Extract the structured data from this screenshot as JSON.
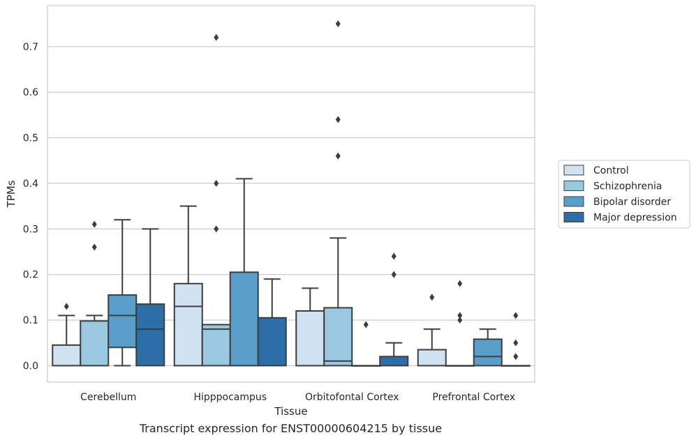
{
  "caption": "Transcript expression for ENST00000604215 by tissue",
  "chart_data": {
    "type": "box",
    "xlabel": "Tissue",
    "ylabel": "TPMs",
    "ylim": [
      -0.036,
      0.79
    ],
    "yticks": [
      0.0,
      0.1,
      0.2,
      0.3,
      0.4,
      0.5,
      0.6,
      0.7
    ],
    "ytick_labels": [
      "0.0",
      "0.1",
      "0.2",
      "0.3",
      "0.4",
      "0.5",
      "0.6",
      "0.7"
    ],
    "grid": "horizontal",
    "legend_position": "right",
    "categories": [
      "Cerebellum",
      "Hipppocampus",
      "Orbitofontal Cortex",
      "Prefrontal Cortex"
    ],
    "series": [
      {
        "name": "Control",
        "color": "#d0e1f2",
        "boxes": [
          {
            "lower_whisker": 0.0,
            "q1": 0.0,
            "median": 0.0,
            "q3": 0.045,
            "upper_whisker": 0.11,
            "outliers": [
              0.13
            ]
          },
          {
            "lower_whisker": 0.0,
            "q1": 0.0,
            "median": 0.13,
            "q3": 0.18,
            "upper_whisker": 0.35,
            "outliers": []
          },
          {
            "lower_whisker": 0.0,
            "q1": 0.0,
            "median": 0.0,
            "q3": 0.12,
            "upper_whisker": 0.17,
            "outliers": []
          },
          {
            "lower_whisker": 0.0,
            "q1": 0.0,
            "median": 0.0,
            "q3": 0.035,
            "upper_whisker": 0.08,
            "outliers": [
              0.15
            ]
          }
        ]
      },
      {
        "name": "Schizophrenia",
        "color": "#9ac8e0",
        "boxes": [
          {
            "lower_whisker": 0.0,
            "q1": 0.0,
            "median": 0.0,
            "q3": 0.098,
            "upper_whisker": 0.11,
            "outliers": [
              0.26,
              0.31
            ]
          },
          {
            "lower_whisker": 0.0,
            "q1": 0.0,
            "median": 0.08,
            "q3": 0.09,
            "upper_whisker": 0.09,
            "outliers": [
              0.3,
              0.4,
              0.72
            ]
          },
          {
            "lower_whisker": 0.0,
            "q1": 0.0,
            "median": 0.01,
            "q3": 0.127,
            "upper_whisker": 0.28,
            "outliers": [
              0.46,
              0.54,
              0.75
            ]
          },
          {
            "lower_whisker": 0.0,
            "q1": 0.0,
            "median": 0.0,
            "q3": 0.0,
            "upper_whisker": 0.0,
            "outliers": [
              0.1,
              0.11,
              0.18
            ]
          }
        ]
      },
      {
        "name": "Bipolar disorder",
        "color": "#5a9fcb",
        "boxes": [
          {
            "lower_whisker": 0.0,
            "q1": 0.04,
            "median": 0.11,
            "q3": 0.155,
            "upper_whisker": 0.32,
            "outliers": []
          },
          {
            "lower_whisker": 0.0,
            "q1": 0.0,
            "median": 0.0,
            "q3": 0.205,
            "upper_whisker": 0.41,
            "outliers": []
          },
          {
            "lower_whisker": 0.0,
            "q1": 0.0,
            "median": 0.0,
            "q3": 0.0,
            "upper_whisker": 0.0,
            "outliers": [
              0.09
            ]
          },
          {
            "lower_whisker": 0.0,
            "q1": 0.0,
            "median": 0.02,
            "q3": 0.058,
            "upper_whisker": 0.08,
            "outliers": []
          }
        ]
      },
      {
        "name": "Major depression",
        "color": "#2d6ea8",
        "boxes": [
          {
            "lower_whisker": 0.0,
            "q1": 0.0,
            "median": 0.08,
            "q3": 0.135,
            "upper_whisker": 0.3,
            "outliers": []
          },
          {
            "lower_whisker": 0.0,
            "q1": 0.0,
            "median": 0.0,
            "q3": 0.105,
            "upper_whisker": 0.19,
            "outliers": []
          },
          {
            "lower_whisker": 0.0,
            "q1": 0.0,
            "median": 0.0,
            "q3": 0.02,
            "upper_whisker": 0.05,
            "outliers": [
              0.2,
              0.24
            ]
          },
          {
            "lower_whisker": 0.0,
            "q1": 0.0,
            "median": 0.0,
            "q3": 0.0,
            "upper_whisker": 0.0,
            "outliers": [
              0.02,
              0.05,
              0.11
            ]
          }
        ]
      }
    ]
  }
}
